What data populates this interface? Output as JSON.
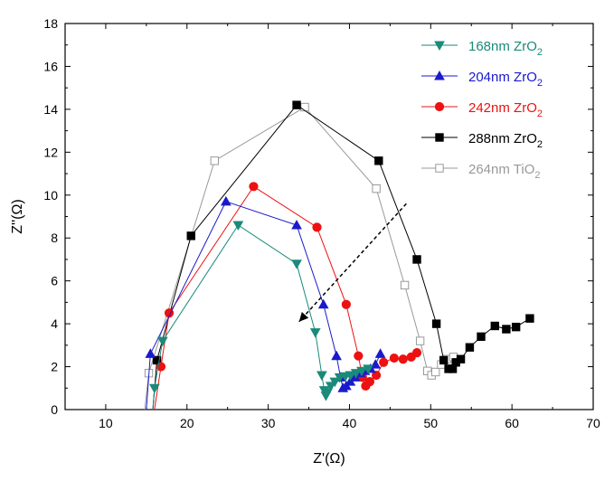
{
  "chart_data": {
    "type": "scatter",
    "xlabel": "Z'(Ω)",
    "ylabel": "Z''(Ω)",
    "xlim": [
      5,
      70
    ],
    "ylim": [
      0,
      18
    ],
    "xticks": [
      10,
      20,
      30,
      40,
      50,
      60,
      70
    ],
    "yticks": [
      0,
      2,
      4,
      6,
      8,
      10,
      12,
      14,
      16,
      18
    ],
    "legend_position": "top-right",
    "series": [
      {
        "name": "168nm ZrO2",
        "legend_base": "168nm ZrO",
        "legend_sub": "2",
        "color": "#1a8a7a",
        "marker": "triangle-down",
        "filled": true,
        "points": [
          [
            15.8,
            0.0
          ],
          [
            16.0,
            1.0
          ],
          [
            17.0,
            3.2
          ],
          [
            26.3,
            8.6
          ],
          [
            33.5,
            6.8
          ],
          [
            35.8,
            3.6
          ],
          [
            36.6,
            1.6
          ],
          [
            36.9,
            0.9
          ],
          [
            37.1,
            0.65
          ],
          [
            37.3,
            0.8
          ],
          [
            37.7,
            1.1
          ],
          [
            38.2,
            1.3
          ],
          [
            38.8,
            1.5
          ],
          [
            39.5,
            1.55
          ],
          [
            40.1,
            1.6
          ],
          [
            40.8,
            1.7
          ],
          [
            41.5,
            1.8
          ],
          [
            42.3,
            1.9
          ]
        ]
      },
      {
        "name": "204nm ZrO2",
        "legend_base": "204nm ZrO",
        "legend_sub": "2",
        "color": "#1a1acc",
        "marker": "triangle-up",
        "filled": true,
        "points": [
          [
            15.0,
            0.0
          ],
          [
            15.5,
            2.6
          ],
          [
            24.8,
            9.7
          ],
          [
            33.5,
            8.6
          ],
          [
            36.8,
            4.9
          ],
          [
            38.4,
            2.5
          ],
          [
            38.9,
            1.5
          ],
          [
            39.2,
            1.0
          ],
          [
            39.6,
            1.1
          ],
          [
            40.1,
            1.3
          ],
          [
            40.7,
            1.5
          ],
          [
            41.3,
            1.7
          ],
          [
            41.9,
            1.8
          ],
          [
            42.6,
            1.9
          ],
          [
            43.2,
            2.1
          ],
          [
            43.8,
            2.6
          ]
        ]
      },
      {
        "name": "242nm ZrO2",
        "legend_base": "242nm ZrO",
        "legend_sub": "2",
        "color": "#ee1111",
        "marker": "circle",
        "filled": true,
        "points": [
          [
            16.0,
            0.0
          ],
          [
            16.8,
            2.0
          ],
          [
            17.8,
            4.5
          ],
          [
            28.2,
            10.4
          ],
          [
            36.0,
            8.5
          ],
          [
            39.6,
            4.9
          ],
          [
            41.1,
            2.5
          ],
          [
            41.6,
            1.5
          ],
          [
            42.0,
            1.1
          ],
          [
            42.5,
            1.3
          ],
          [
            43.3,
            1.6
          ],
          [
            44.2,
            2.2
          ],
          [
            45.5,
            2.4
          ],
          [
            46.6,
            2.35
          ],
          [
            47.6,
            2.45
          ],
          [
            48.3,
            2.65
          ]
        ]
      },
      {
        "name": "288nm ZrO2",
        "legend_base": "288nm ZrO",
        "legend_sub": "2",
        "color": "#000000",
        "marker": "square",
        "filled": true,
        "points": [
          [
            15.8,
            0.0
          ],
          [
            16.3,
            2.3
          ],
          [
            20.5,
            8.1
          ],
          [
            33.5,
            14.2
          ],
          [
            43.6,
            11.6
          ],
          [
            48.3,
            7.0
          ],
          [
            50.7,
            4.0
          ],
          [
            51.6,
            2.3
          ],
          [
            52.2,
            1.9
          ],
          [
            52.7,
            1.9
          ],
          [
            53.1,
            2.2
          ],
          [
            53.7,
            2.35
          ],
          [
            54.8,
            2.9
          ],
          [
            56.2,
            3.4
          ],
          [
            57.9,
            3.9
          ],
          [
            59.3,
            3.75
          ],
          [
            60.5,
            3.85
          ],
          [
            62.2,
            4.25
          ]
        ]
      },
      {
        "name": "264nm TiO2",
        "legend_base": "264nm TiO",
        "legend_sub": "2",
        "color": "#999999",
        "marker": "square",
        "filled": false,
        "points": [
          [
            14.8,
            0.0
          ],
          [
            15.3,
            1.7
          ],
          [
            23.4,
            11.6
          ],
          [
            34.5,
            14.1
          ],
          [
            43.3,
            10.3
          ],
          [
            46.8,
            5.8
          ],
          [
            48.7,
            3.2
          ],
          [
            49.6,
            1.8
          ],
          [
            50.1,
            1.6
          ],
          [
            50.6,
            1.75
          ],
          [
            51.3,
            2.1
          ],
          [
            52.0,
            2.35
          ],
          [
            52.8,
            2.45
          ]
        ]
      }
    ],
    "arrow": {
      "from": [
        47.0,
        9.6
      ],
      "to": [
        33.8,
        4.1
      ]
    }
  }
}
